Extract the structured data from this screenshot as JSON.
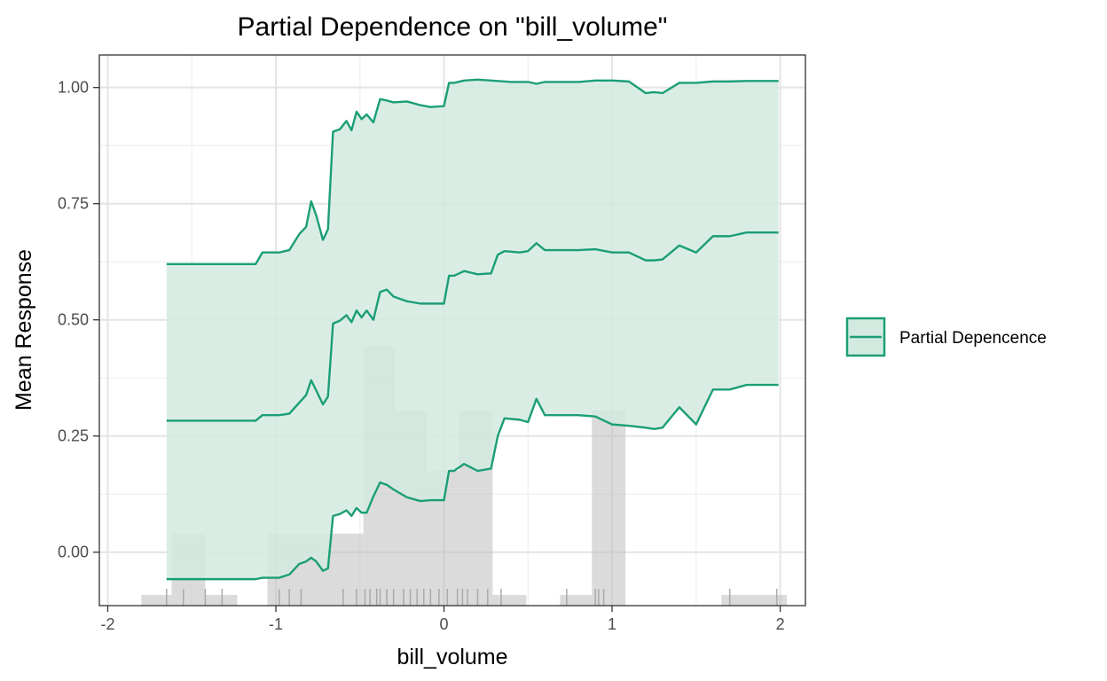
{
  "chart_data": {
    "type": "line",
    "title": "Partial Dependence on \"bill_volume\"",
    "xlabel": "bill_volume",
    "ylabel": "Mean Response",
    "xlim": [
      -2.05,
      2.15
    ],
    "ylim": [
      -0.115,
      1.07
    ],
    "x_ticks": [
      -2,
      -1,
      0,
      1,
      2
    ],
    "x_tick_labels": [
      "-2",
      "-1",
      "0",
      "1",
      "2"
    ],
    "y_ticks": [
      0,
      0.25,
      0.5,
      0.75,
      1.0
    ],
    "y_tick_labels": [
      "0.00",
      "0.25",
      "0.50",
      "0.75",
      "1.00"
    ],
    "grid": true,
    "legend": {
      "position": "right",
      "entries": [
        "Partial Depencence"
      ]
    },
    "colors": {
      "line": "#1b9e77",
      "band": "#d3eae0",
      "histogram": "#bebebe",
      "rug": "#aaaaaa"
    },
    "series": [
      {
        "role": "upper",
        "x": [
          -1.65,
          -1.12,
          -1.08,
          -0.98,
          -0.92,
          -0.86,
          -0.82,
          -0.79,
          -0.76,
          -0.72,
          -0.69,
          -0.66,
          -0.62,
          -0.58,
          -0.55,
          -0.52,
          -0.49,
          -0.46,
          -0.42,
          -0.38,
          -0.34,
          -0.3,
          -0.22,
          -0.14,
          -0.08,
          0.0,
          0.03,
          0.06,
          0.12,
          0.2,
          0.28,
          0.4,
          0.5,
          0.55,
          0.6,
          0.8,
          0.9,
          1.0,
          1.1,
          1.2,
          1.25,
          1.3,
          1.4,
          1.5,
          1.6,
          1.7,
          1.8,
          1.99
        ],
        "values": [
          0.62,
          0.62,
          0.645,
          0.645,
          0.65,
          0.685,
          0.7,
          0.755,
          0.725,
          0.672,
          0.695,
          0.905,
          0.91,
          0.928,
          0.908,
          0.948,
          0.932,
          0.942,
          0.925,
          0.975,
          0.972,
          0.968,
          0.97,
          0.962,
          0.958,
          0.96,
          1.01,
          1.01,
          1.015,
          1.017,
          1.015,
          1.012,
          1.012,
          1.008,
          1.012,
          1.012,
          1.015,
          1.015,
          1.013,
          0.988,
          0.99,
          0.988,
          1.01,
          1.01,
          1.013,
          1.013,
          1.014,
          1.014
        ]
      },
      {
        "role": "estimate",
        "x": [
          -1.65,
          -1.12,
          -1.08,
          -0.98,
          -0.92,
          -0.86,
          -0.82,
          -0.79,
          -0.76,
          -0.72,
          -0.69,
          -0.66,
          -0.62,
          -0.58,
          -0.55,
          -0.52,
          -0.49,
          -0.46,
          -0.42,
          -0.38,
          -0.34,
          -0.3,
          -0.22,
          -0.14,
          -0.08,
          0.0,
          0.03,
          0.06,
          0.12,
          0.2,
          0.28,
          0.32,
          0.36,
          0.45,
          0.5,
          0.55,
          0.6,
          0.8,
          0.9,
          1.0,
          1.1,
          1.2,
          1.25,
          1.3,
          1.4,
          1.5,
          1.6,
          1.7,
          1.8,
          1.99
        ],
        "values": [
          0.283,
          0.283,
          0.295,
          0.295,
          0.298,
          0.322,
          0.338,
          0.37,
          0.348,
          0.318,
          0.335,
          0.492,
          0.498,
          0.51,
          0.495,
          0.52,
          0.505,
          0.52,
          0.5,
          0.56,
          0.565,
          0.55,
          0.54,
          0.535,
          0.535,
          0.535,
          0.595,
          0.595,
          0.605,
          0.598,
          0.6,
          0.64,
          0.648,
          0.645,
          0.648,
          0.665,
          0.65,
          0.65,
          0.652,
          0.645,
          0.645,
          0.628,
          0.628,
          0.63,
          0.66,
          0.645,
          0.68,
          0.68,
          0.688,
          0.688
        ]
      },
      {
        "role": "lower",
        "x": [
          -1.65,
          -1.12,
          -1.08,
          -0.98,
          -0.92,
          -0.86,
          -0.82,
          -0.79,
          -0.76,
          -0.72,
          -0.69,
          -0.66,
          -0.62,
          -0.58,
          -0.55,
          -0.52,
          -0.49,
          -0.46,
          -0.42,
          -0.38,
          -0.34,
          -0.3,
          -0.22,
          -0.14,
          -0.08,
          0.0,
          0.03,
          0.06,
          0.12,
          0.2,
          0.28,
          0.32,
          0.36,
          0.45,
          0.5,
          0.55,
          0.6,
          0.8,
          0.9,
          1.0,
          1.1,
          1.2,
          1.25,
          1.3,
          1.4,
          1.5,
          1.6,
          1.7,
          1.8,
          1.99
        ],
        "values": [
          -0.058,
          -0.058,
          -0.055,
          -0.055,
          -0.048,
          -0.025,
          -0.02,
          -0.012,
          -0.02,
          -0.04,
          -0.035,
          0.078,
          0.082,
          0.09,
          0.078,
          0.095,
          0.085,
          0.085,
          0.12,
          0.15,
          0.145,
          0.135,
          0.118,
          0.11,
          0.112,
          0.112,
          0.175,
          0.175,
          0.19,
          0.175,
          0.18,
          0.25,
          0.288,
          0.285,
          0.28,
          0.33,
          0.295,
          0.295,
          0.292,
          0.275,
          0.272,
          0.268,
          0.265,
          0.268,
          0.312,
          0.275,
          0.35,
          0.35,
          0.36,
          0.36
        ]
      }
    ],
    "histogram": {
      "bins": [
        {
          "x0": -1.8,
          "x1": -1.62,
          "height": 0.023
        },
        {
          "x0": -1.62,
          "x1": -1.42,
          "height": 0.155
        },
        {
          "x0": -1.42,
          "x1": -1.23,
          "height": 0.023
        },
        {
          "x0": -1.05,
          "x1": -0.48,
          "height": 0.155
        },
        {
          "x0": -0.48,
          "x1": -0.29,
          "height": 0.558
        },
        {
          "x0": -0.29,
          "x1": -0.1,
          "height": 0.42
        },
        {
          "x0": -0.1,
          "x1": 0.09,
          "height": 0.29
        },
        {
          "x0": 0.09,
          "x1": 0.29,
          "height": 0.42
        },
        {
          "x0": 0.29,
          "x1": 0.49,
          "height": 0.023
        },
        {
          "x0": 0.69,
          "x1": 0.88,
          "height": 0.023
        },
        {
          "x0": 0.88,
          "x1": 1.08,
          "height": 0.42
        },
        {
          "x0": 1.65,
          "x1": 2.04,
          "height": 0.023
        }
      ]
    },
    "rug": [
      -1.65,
      -1.55,
      -1.42,
      -1.32,
      -0.98,
      -0.92,
      -0.85,
      -0.6,
      -0.52,
      -0.47,
      -0.44,
      -0.4,
      -0.38,
      -0.34,
      -0.3,
      -0.24,
      -0.2,
      -0.16,
      -0.12,
      -0.08,
      -0.03,
      0.02,
      0.08,
      0.11,
      0.14,
      0.2,
      0.26,
      0.34,
      0.73,
      0.9,
      0.92,
      0.95,
      1.7,
      1.98
    ]
  }
}
